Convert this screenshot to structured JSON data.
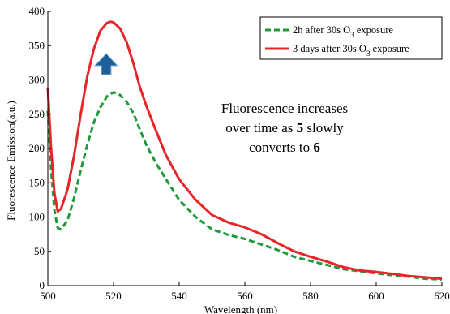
{
  "chart_data": {
    "type": "line",
    "xlabel": "Wavelength (nm)",
    "ylabel": "Fluorescence Emission(a.u.)",
    "xlim": [
      500,
      620
    ],
    "ylim": [
      0,
      400
    ],
    "x_ticks": [
      "500",
      "520",
      "540",
      "560",
      "580",
      "600",
      "620"
    ],
    "y_ticks": [
      "0",
      "50",
      "100",
      "150",
      "200",
      "250",
      "300",
      "350",
      "400"
    ],
    "grid": false,
    "legend_position": "top-right",
    "series": [
      {
        "name_parts": [
          "2h after 30s O",
          "3",
          " exposure"
        ],
        "color": "#1f9a3a",
        "style": "dashed",
        "x": [
          500,
          501,
          502,
          503,
          504,
          506,
          508,
          510,
          512,
          514,
          516,
          518,
          520,
          522,
          524,
          526,
          528,
          530,
          533,
          536,
          540,
          545,
          550,
          555,
          560,
          565,
          570,
          575,
          580,
          585,
          590,
          595,
          600,
          605,
          610,
          615,
          620
        ],
        "y": [
          255,
          170,
          110,
          84,
          82,
          95,
          128,
          168,
          205,
          238,
          260,
          276,
          282,
          278,
          268,
          252,
          228,
          205,
          178,
          155,
          125,
          100,
          82,
          74,
          68,
          60,
          52,
          42,
          36,
          30,
          24,
          21,
          18,
          15,
          13,
          10,
          9
        ]
      },
      {
        "name_parts": [
          "3 days after 30s O",
          "3",
          " exposure"
        ],
        "color": "#e8262a",
        "style": "solid",
        "x": [
          500,
          501,
          502,
          503,
          504,
          506,
          508,
          510,
          512,
          514,
          516,
          518,
          519,
          520,
          522,
          524,
          526,
          528,
          530,
          533,
          536,
          540,
          545,
          550,
          555,
          560,
          565,
          570,
          575,
          580,
          585,
          590,
          595,
          600,
          605,
          610,
          615,
          620
        ],
        "y": [
          288,
          200,
          135,
          108,
          112,
          140,
          190,
          250,
          305,
          345,
          372,
          383,
          385,
          384,
          375,
          355,
          325,
          290,
          262,
          225,
          190,
          155,
          125,
          103,
          92,
          85,
          75,
          62,
          50,
          42,
          35,
          27,
          22,
          20,
          17,
          14,
          12,
          10
        ]
      }
    ],
    "annotation": {
      "line1": "Fluorescence increases",
      "line2_pre": "over time as ",
      "line2_bold": "5",
      "line2_post": " slowly",
      "line3_pre": "converts to ",
      "line3_bold": "6"
    },
    "arrow_color": "#1f5f99"
  }
}
